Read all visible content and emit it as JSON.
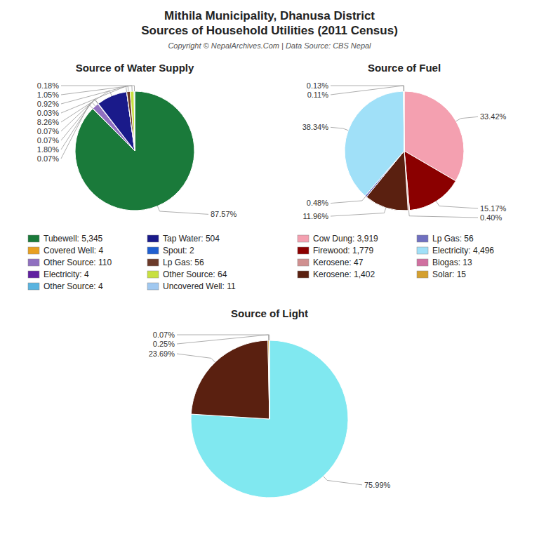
{
  "title": "Mithila Municipality, Dhanusa District",
  "subtitle": "Sources of Household Utilities (2011 Census)",
  "annotations": [
    "Copyright © NepalArchives.Com | Data Source: CBS Nepal"
  ],
  "chart_data": [
    {
      "type": "pie",
      "title": "Source of Water Supply",
      "categories": [
        "Tubewell: 5,345",
        "Covered Well: 4",
        "Other Source: 110",
        "Electricity: 4",
        "Other Source: 4",
        "Tap Water: 504",
        "Spout: 2",
        "Lp Gas: 56",
        "Other Source: 64",
        "Uncovered Well: 11"
      ],
      "values": [
        87.57,
        0.07,
        1.8,
        0.07,
        0.07,
        8.26,
        0.03,
        0.92,
        1.05,
        0.18
      ],
      "value_labels": [
        "87.57%",
        "0.07%",
        "1.80%",
        "0.07%",
        "0.07%",
        "8.26%",
        "0.03%",
        "0.92%",
        "1.05%",
        "0.18%"
      ],
      "colors": [
        "#1a7a3a",
        "#e8a020",
        "#9070c0",
        "#6020a0",
        "#5ab4e0",
        "#1a1a8a",
        "#2060d0",
        "#6b3a2a",
        "#c8e040",
        "#a0c8f0"
      ],
      "data_labels": true,
      "legend": "bottom"
    },
    {
      "type": "pie",
      "title": "Source of Fuel",
      "categories": [
        "Cow Dung: 3,919",
        "Firewood: 1,779",
        "Kerosene: 47",
        "Kerosene: 1,402",
        "Lp Gas: 56",
        "Electricity: 4,496",
        "Biogas: 13",
        "Solar: 15"
      ],
      "values": [
        33.42,
        15.17,
        0.4,
        11.96,
        0.48,
        38.34,
        0.11,
        0.13
      ],
      "value_labels": [
        "33.42%",
        "15.17%",
        "0.40%",
        "11.96%",
        "0.48%",
        "38.34%",
        "0.11%",
        "0.13%"
      ],
      "colors": [
        "#f4a0b0",
        "#8b0000",
        "#d09090",
        "#5a2010",
        "#7070c0",
        "#a0e0f8",
        "#d070a0",
        "#d4a030"
      ],
      "data_labels": true,
      "legend": "bottom"
    },
    {
      "type": "pie",
      "title": "Source of Light",
      "values": [
        75.99,
        23.69,
        0.25,
        0.07
      ],
      "value_labels": [
        "75.99%",
        "23.69%",
        "0.25%",
        "0.07%"
      ],
      "colors": [
        "#80e8f0",
        "#5a2010",
        "#d4a030",
        "#9090d0"
      ],
      "data_labels": true
    }
  ]
}
